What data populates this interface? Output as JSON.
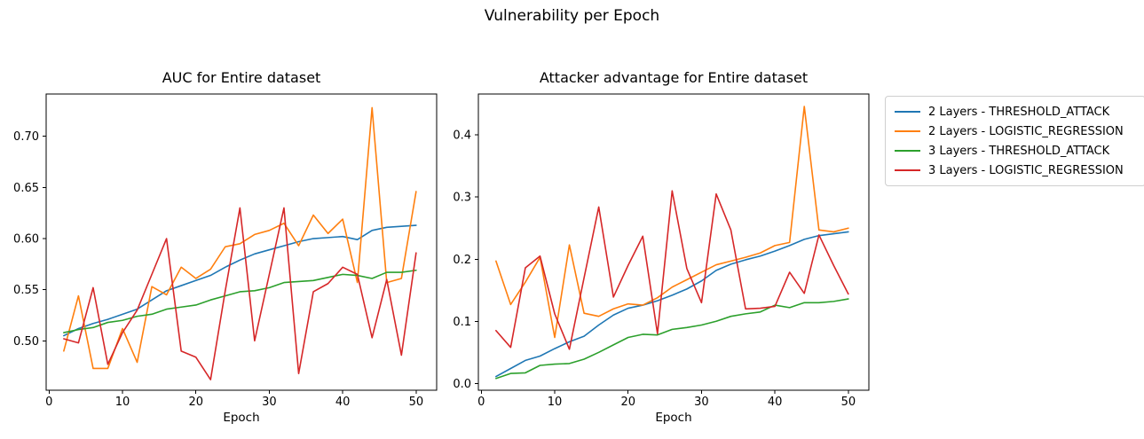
{
  "figure": {
    "title": "Vulnerability per Epoch",
    "background_color": "#ffffff",
    "text_color": "#000000"
  },
  "legend": {
    "position": "outside-upper-right",
    "items": [
      {
        "label": "2 Layers - THRESHOLD_ATTACK",
        "color": "#1f77b4"
      },
      {
        "label": "2 Layers - LOGISTIC_REGRESSION",
        "color": "#ff7f0e"
      },
      {
        "label": "3 Layers - THRESHOLD_ATTACK",
        "color": "#2ca02c"
      },
      {
        "label": "3 Layers - LOGISTIC_REGRESSION",
        "color": "#d62728"
      }
    ]
  },
  "chart_data": [
    {
      "type": "line",
      "id": "auc",
      "title": "AUC for Entire dataset",
      "xlabel": "Epoch",
      "ylabel": "",
      "grid": false,
      "xlim": [
        -0.4,
        52.8
      ],
      "ylim": [
        0.4517,
        0.7414
      ],
      "xticks": [
        0,
        10,
        20,
        30,
        40,
        50
      ],
      "xtick_labels": [
        "0",
        "10",
        "20",
        "30",
        "40",
        "50"
      ],
      "yticks": [
        0.5,
        0.55,
        0.6,
        0.65,
        0.7
      ],
      "ytick_labels": [
        "0.50",
        "0.55",
        "0.60",
        "0.65",
        "0.70"
      ],
      "x": [
        2,
        4,
        6,
        8,
        10,
        12,
        14,
        16,
        18,
        20,
        22,
        24,
        26,
        28,
        30,
        32,
        34,
        36,
        38,
        40,
        42,
        44,
        46,
        48,
        50
      ],
      "series": [
        {
          "name": "2 Layers - THRESHOLD_ATTACK",
          "color": "#1f77b4",
          "values": [
            0.505,
            0.512,
            0.517,
            0.521,
            0.526,
            0.531,
            0.54,
            0.549,
            0.554,
            0.559,
            0.564,
            0.572,
            0.579,
            0.585,
            0.589,
            0.593,
            0.597,
            0.6,
            0.601,
            0.602,
            0.599,
            0.608,
            0.611,
            0.612,
            0.613
          ]
        },
        {
          "name": "2 Layers - LOGISTIC_REGRESSION",
          "color": "#ff7f0e",
          "values": [
            0.49,
            0.544,
            0.473,
            0.473,
            0.512,
            0.479,
            0.553,
            0.545,
            0.572,
            0.561,
            0.57,
            0.592,
            0.595,
            0.604,
            0.608,
            0.615,
            0.593,
            0.623,
            0.605,
            0.619,
            0.557,
            0.728,
            0.557,
            0.561,
            0.646
          ]
        },
        {
          "name": "3 Layers - THRESHOLD_ATTACK",
          "color": "#2ca02c",
          "values": [
            0.508,
            0.511,
            0.513,
            0.518,
            0.52,
            0.524,
            0.526,
            0.531,
            0.533,
            0.535,
            0.54,
            0.544,
            0.548,
            0.549,
            0.552,
            0.557,
            0.558,
            0.559,
            0.562,
            0.565,
            0.564,
            0.561,
            0.567,
            0.567,
            0.569
          ]
        },
        {
          "name": "3 Layers - LOGISTIC_REGRESSION",
          "color": "#d62728",
          "values": [
            0.502,
            0.498,
            0.552,
            0.477,
            0.508,
            0.53,
            0.565,
            0.6,
            0.49,
            0.484,
            0.462,
            0.549,
            0.63,
            0.5,
            0.565,
            0.63,
            0.468,
            0.548,
            0.556,
            0.572,
            0.565,
            0.503,
            0.56,
            0.486,
            0.586
          ]
        }
      ]
    },
    {
      "type": "line",
      "id": "attacker-advantage",
      "title": "Attacker advantage for Entire dataset",
      "xlabel": "Epoch",
      "ylabel": "",
      "grid": false,
      "xlim": [
        -0.4,
        52.8
      ],
      "ylim": [
        -0.011,
        0.466
      ],
      "xticks": [
        0,
        10,
        20,
        30,
        40,
        50
      ],
      "xtick_labels": [
        "0",
        "10",
        "20",
        "30",
        "40",
        "50"
      ],
      "yticks": [
        0.0,
        0.1,
        0.2,
        0.3,
        0.4
      ],
      "ytick_labels": [
        "0.0",
        "0.1",
        "0.2",
        "0.3",
        "0.4"
      ],
      "x": [
        2,
        4,
        6,
        8,
        10,
        12,
        14,
        16,
        18,
        20,
        22,
        24,
        26,
        28,
        30,
        32,
        34,
        36,
        38,
        40,
        42,
        44,
        46,
        48,
        50
      ],
      "series": [
        {
          "name": "2 Layers - THRESHOLD_ATTACK",
          "color": "#1f77b4",
          "values": [
            0.011,
            0.024,
            0.037,
            0.044,
            0.056,
            0.067,
            0.076,
            0.094,
            0.11,
            0.121,
            0.126,
            0.133,
            0.142,
            0.152,
            0.165,
            0.182,
            0.192,
            0.199,
            0.205,
            0.213,
            0.222,
            0.232,
            0.238,
            0.241,
            0.244
          ]
        },
        {
          "name": "2 Layers - LOGISTIC_REGRESSION",
          "color": "#ff7f0e",
          "values": [
            0.197,
            0.127,
            0.163,
            0.203,
            0.074,
            0.223,
            0.113,
            0.108,
            0.12,
            0.128,
            0.126,
            0.138,
            0.155,
            0.167,
            0.179,
            0.191,
            0.197,
            0.203,
            0.21,
            0.222,
            0.227,
            0.446,
            0.247,
            0.244,
            0.25
          ]
        },
        {
          "name": "3 Layers - THRESHOLD_ATTACK",
          "color": "#2ca02c",
          "values": [
            0.008,
            0.016,
            0.017,
            0.029,
            0.031,
            0.032,
            0.039,
            0.05,
            0.062,
            0.074,
            0.079,
            0.078,
            0.087,
            0.09,
            0.094,
            0.1,
            0.108,
            0.112,
            0.115,
            0.126,
            0.122,
            0.13,
            0.13,
            0.132,
            0.136
          ]
        },
        {
          "name": "3 Layers - LOGISTIC_REGRESSION",
          "color": "#d62728",
          "values": [
            0.085,
            0.058,
            0.186,
            0.205,
            0.112,
            0.055,
            0.17,
            0.284,
            0.139,
            0.19,
            0.237,
            0.08,
            0.31,
            0.185,
            0.13,
            0.305,
            0.247,
            0.12,
            0.121,
            0.124,
            0.179,
            0.145,
            0.239,
            0.19,
            0.144
          ]
        }
      ]
    }
  ]
}
